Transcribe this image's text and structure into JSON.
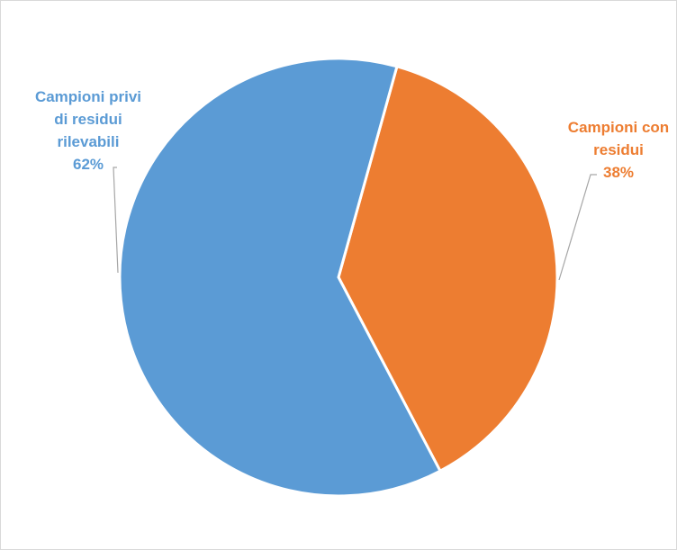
{
  "chart_data": {
    "type": "pie",
    "title": "",
    "slices": [
      {
        "name": "Campioni privi di residui rilevabili",
        "label_lines": [
          "Campioni privi",
          "di residui",
          "rilevabili"
        ],
        "value": 62,
        "value_label": "62%",
        "color": "#5b9bd5"
      },
      {
        "name": "Campioni con residui",
        "label_lines": [
          "Campioni con",
          "residui"
        ],
        "value": 38,
        "value_label": "38%",
        "color": "#ed7d31"
      }
    ],
    "legend": "none",
    "data_labels": "outside-with-leader-lines"
  }
}
